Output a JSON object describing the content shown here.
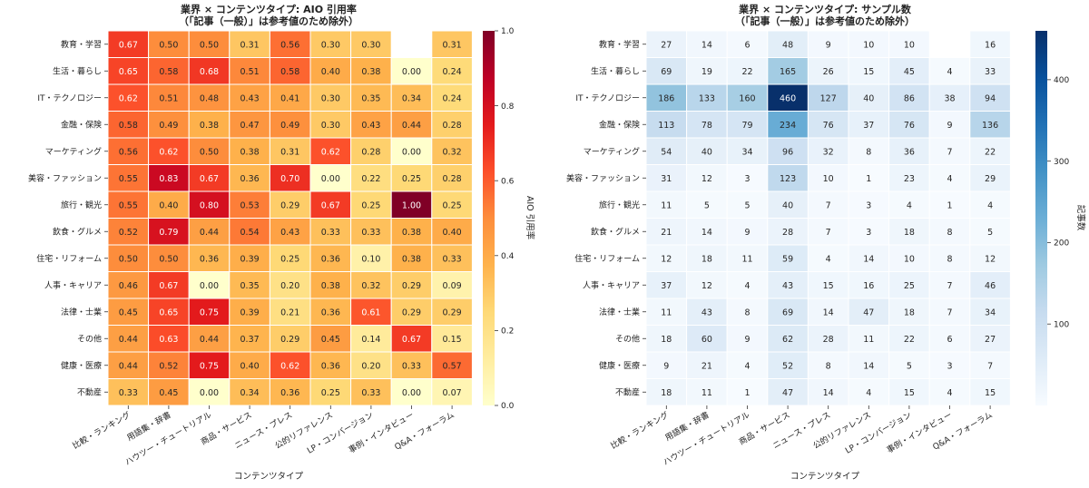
{
  "chart_data": [
    {
      "type": "heatmap",
      "title": "業界 × コンテンツタイプ: AIO 引用率",
      "subtitle": "（「記事（一般）」は参考値のため除外）",
      "xlabel": "コンテンツタイプ",
      "ylabel": "",
      "colorbar_label": "AIO 引用率",
      "colormap": "YlOrRd",
      "vrange": [
        0.0,
        1.0
      ],
      "colorbar_ticks": [
        "0.0",
        "0.2",
        "0.4",
        "0.6",
        "0.8",
        "1.0"
      ],
      "x_categories": [
        "比較・ランキング",
        "用語集・辞書",
        "ハウツー・チュートリアル",
        "商品・サービス",
        "ニュース・プレス",
        "公的リファレンス",
        "LP・コンバージョン",
        "事例・インタビュー",
        "Q&A・フォーラム"
      ],
      "y_categories": [
        "教育・学習",
        "生活・暮らし",
        "IT・テクノロジー",
        "金融・保険",
        "マーケティング",
        "美容・ファッション",
        "旅行・観光",
        "飲食・グルメ",
        "住宅・リフォーム",
        "人事・キャリア",
        "法律・士業",
        "その他",
        "健康・医療",
        "不動産"
      ],
      "values": [
        [
          0.67,
          0.5,
          0.5,
          0.31,
          0.56,
          0.3,
          0.3,
          null,
          0.31
        ],
        [
          0.65,
          0.58,
          0.68,
          0.51,
          0.58,
          0.4,
          0.38,
          0.0,
          0.24
        ],
        [
          0.62,
          0.51,
          0.48,
          0.43,
          0.41,
          0.3,
          0.35,
          0.34,
          0.24
        ],
        [
          0.58,
          0.49,
          0.38,
          0.47,
          0.49,
          0.3,
          0.43,
          0.44,
          0.28
        ],
        [
          0.56,
          0.62,
          0.5,
          0.38,
          0.31,
          0.62,
          0.28,
          0.0,
          0.32
        ],
        [
          0.55,
          0.83,
          0.67,
          0.36,
          0.7,
          0.0,
          0.22,
          0.25,
          0.28
        ],
        [
          0.55,
          0.4,
          0.8,
          0.53,
          0.29,
          0.67,
          0.25,
          1.0,
          0.25
        ],
        [
          0.52,
          0.79,
          0.44,
          0.54,
          0.43,
          0.33,
          0.33,
          0.38,
          0.4
        ],
        [
          0.5,
          0.5,
          0.36,
          0.39,
          0.25,
          0.36,
          0.1,
          0.38,
          0.33
        ],
        [
          0.46,
          0.67,
          0.0,
          0.35,
          0.2,
          0.38,
          0.32,
          0.29,
          0.09
        ],
        [
          0.45,
          0.65,
          0.75,
          0.39,
          0.21,
          0.36,
          0.61,
          0.29,
          0.29
        ],
        [
          0.44,
          0.63,
          0.44,
          0.37,
          0.29,
          0.45,
          0.14,
          0.67,
          0.15
        ],
        [
          0.44,
          0.52,
          0.75,
          0.4,
          0.62,
          0.36,
          0.2,
          0.33,
          0.57
        ],
        [
          0.33,
          0.45,
          0.0,
          0.34,
          0.36,
          0.25,
          0.33,
          0.0,
          0.07
        ]
      ]
    },
    {
      "type": "heatmap",
      "title": "業界 × コンテンツタイプ: サンプル数",
      "subtitle": "（「記事（一般）」は参考値のため除外）",
      "xlabel": "コンテンツタイプ",
      "ylabel": "",
      "colorbar_label": "記事数",
      "colormap": "Blues",
      "vrange": [
        0,
        460
      ],
      "colorbar_ticks": [
        "100",
        "200",
        "300",
        "400"
      ],
      "x_categories": [
        "比較・ランキング",
        "用語集・辞書",
        "ハウツー・チュートリアル",
        "商品・サービス",
        "ニュース・プレス",
        "公的リファレンス",
        "LP・コンバージョン",
        "事例・インタビュー",
        "Q&A・フォーラム"
      ],
      "y_categories": [
        "教育・学習",
        "生活・暮らし",
        "IT・テクノロジー",
        "金融・保険",
        "マーケティング",
        "美容・ファッション",
        "旅行・観光",
        "飲食・グルメ",
        "住宅・リフォーム",
        "人事・キャリア",
        "法律・士業",
        "その他",
        "健康・医療",
        "不動産"
      ],
      "values": [
        [
          27,
          14,
          6,
          48,
          9,
          10,
          10,
          null,
          16
        ],
        [
          69,
          19,
          22,
          165,
          26,
          15,
          45,
          4,
          33
        ],
        [
          186,
          133,
          160,
          460,
          127,
          40,
          86,
          38,
          94
        ],
        [
          113,
          78,
          79,
          234,
          76,
          37,
          76,
          9,
          136
        ],
        [
          54,
          40,
          34,
          96,
          32,
          8,
          36,
          7,
          22
        ],
        [
          31,
          12,
          3,
          123,
          10,
          1,
          23,
          4,
          29
        ],
        [
          11,
          5,
          5,
          40,
          7,
          3,
          4,
          1,
          4
        ],
        [
          21,
          14,
          9,
          28,
          7,
          3,
          18,
          8,
          5
        ],
        [
          12,
          18,
          11,
          59,
          4,
          14,
          10,
          8,
          12
        ],
        [
          37,
          12,
          4,
          43,
          15,
          16,
          25,
          7,
          46
        ],
        [
          11,
          43,
          8,
          69,
          14,
          47,
          18,
          7,
          34
        ],
        [
          18,
          60,
          9,
          62,
          28,
          11,
          22,
          6,
          27
        ],
        [
          9,
          21,
          4,
          52,
          8,
          14,
          5,
          3,
          7
        ],
        [
          18,
          11,
          1,
          47,
          14,
          4,
          15,
          4,
          15
        ]
      ]
    }
  ]
}
